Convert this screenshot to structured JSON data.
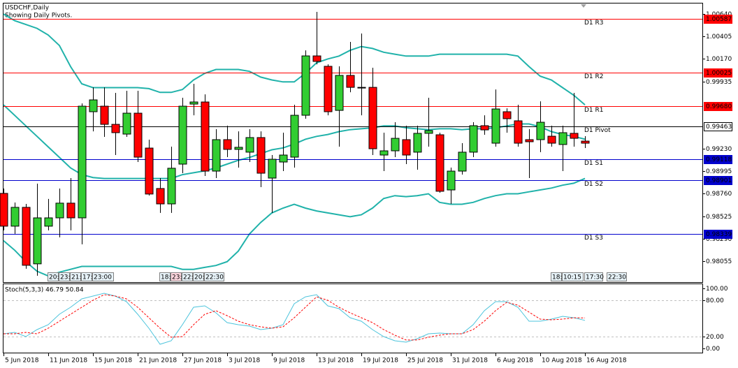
{
  "chart_data": [
    {
      "type": "candlestick",
      "title": "USDCHF,Daily",
      "subtitle": "Showing Daily Pivots.",
      "categories": [
        "5 Jun 2018",
        null,
        null,
        null,
        "11 Jun 2018",
        null,
        null,
        null,
        "15 Jun 2018",
        null,
        null,
        null,
        "21 Jun 2018",
        null,
        null,
        null,
        "27 Jun 2018",
        null,
        null,
        null,
        "3 Jul 2018",
        null,
        null,
        null,
        "9 Jul 2018",
        null,
        null,
        null,
        "13 Jul 2018",
        null,
        null,
        null,
        "19 Jul 2018",
        null,
        null,
        null,
        "25 Jul 2018",
        null,
        null,
        null,
        "31 Jul 2018",
        null,
        null,
        null,
        "6 Aug 2018",
        null,
        null,
        null,
        "10 Aug 2018",
        null,
        null,
        null,
        "16 Aug 2018"
      ],
      "open": [
        0.98764,
        0.98421,
        0.98618,
        0.98027,
        0.98421,
        0.98508,
        0.98662,
        0.98508,
        0.99618,
        0.99676,
        0.99486,
        0.99384,
        0.99603,
        0.99238,
        0.98815,
        0.98654,
        0.9907,
        0.99698,
        0.9972,
        0.98997,
        0.99326,
        0.99224,
        0.99195,
        0.99348,
        0.98924,
        0.99092,
        0.99143,
        0.99581,
        1.00202,
        1.00093,
        0.99632,
        0.99998,
        0.99873,
        0.99873,
        0.99165,
        0.99209,
        0.99326,
        0.99195,
        0.99392,
        0.99377,
        0.988,
        0.98997,
        0.99195,
        0.99472,
        0.99289,
        0.99618,
        0.99523,
        0.99326,
        0.99326,
        0.99362,
        0.99275,
        0.99392,
        0.99311
      ],
      "high": [
        0.98815,
        0.98669,
        0.98654,
        0.98866,
        0.98706,
        0.98815,
        0.98924,
        0.99705,
        0.99873,
        0.99873,
        0.99815,
        0.99837,
        0.99837,
        0.99326,
        0.98924,
        0.99253,
        0.99764,
        0.9991,
        0.998,
        0.99435,
        0.99472,
        0.99413,
        0.99435,
        0.99413,
        0.99165,
        0.99399,
        0.99691,
        1.0026,
        1.00662,
        1.00114,
        1.00093,
        1.00348,
        1.00436,
        1.00078,
        0.99399,
        0.99508,
        0.99472,
        0.99472,
        0.99764,
        0.99399,
        0.99034,
        0.99289,
        0.99508,
        0.99581,
        0.99851,
        0.99654,
        0.99691,
        0.99435,
        0.99727,
        0.99472,
        0.99472,
        0.99815,
        0.99362
      ],
      "low": [
        0.98377,
        0.98341,
        0.97976,
        0.97903,
        0.98377,
        0.98304,
        0.98377,
        0.98231,
        0.99413,
        0.99355,
        0.99165,
        0.99355,
        0.99092,
        0.98742,
        0.9856,
        0.9856,
        0.98975,
        0.99581,
        0.98946,
        0.98924,
        0.99143,
        0.99034,
        0.99092,
        0.98829,
        0.9856,
        0.98997,
        0.99034,
        0.99545,
        1.00114,
        0.99581,
        0.99253,
        0.99822,
        0.99581,
        0.99165,
        0.98997,
        0.99143,
        0.9907,
        0.99012,
        0.99253,
        0.98771,
        0.98654,
        0.98961,
        0.99143,
        0.99377,
        0.99253,
        0.99399,
        0.99253,
        0.98924,
        0.99195,
        0.99253,
        0.98997,
        0.99253,
        0.99238
      ],
      "close": [
        0.98421,
        0.98618,
        0.98012,
        0.98508,
        0.98508,
        0.98662,
        0.98508,
        0.99676,
        0.99742,
        0.99486,
        0.99399,
        0.99603,
        0.99143,
        0.98757,
        0.98654,
        0.99027,
        0.99676,
        0.9972,
        0.98997,
        0.99326,
        0.99224,
        0.99246,
        0.99348,
        0.98975,
        0.99121,
        0.99165,
        0.99581,
        1.00202,
        1.00144,
        0.99618,
        0.99998,
        0.99873,
        0.99873,
        0.99231,
        0.99209,
        0.9934,
        0.99165,
        0.99392,
        0.99421,
        0.98786,
        0.98997,
        0.99195,
        0.99472,
        0.99428,
        0.99647,
        0.99545,
        0.99289,
        0.99304,
        0.99508,
        0.99289,
        0.99399,
        0.9934,
        0.99289
      ],
      "up_color": "#32cd32",
      "down_color": "#ff0000",
      "bands": [
        {
          "color": "#20b2aa",
          "values": [
            1.0064,
            1.0057,
            1.0053,
            1.0049,
            1.0042,
            1.0031,
            1.0009,
            0.9991,
            0.9987,
            0.9987,
            0.9987,
            0.9987,
            0.9987,
            0.9986,
            0.9982,
            0.9982,
            0.9985,
            0.9995,
            1.0002,
            1.0006,
            1.0006,
            1.0006,
            1.0004,
            0.9998,
            0.9995,
            0.9993,
            0.9993,
            1.0002,
            1.0013,
            1.0017,
            1.002,
            1.0026,
            1.003,
            1.0028,
            1.0024,
            1.0022,
            1.002,
            1.002,
            1.002,
            1.0022,
            1.0022,
            1.0022,
            1.0022,
            1.0022,
            1.0022,
            1.0022,
            1.002,
            1.0009,
            0.9999,
            0.9995,
            0.9987,
            0.9979,
            0.9969
          ]
        },
        {
          "color": "#20b2aa",
          "values": [
            0.9969,
            0.9958,
            0.9947,
            0.9936,
            0.9925,
            0.9914,
            0.9903,
            0.9896,
            0.9893,
            0.9892,
            0.9892,
            0.9892,
            0.9892,
            0.9892,
            0.9892,
            0.9892,
            0.9896,
            0.9898,
            0.99,
            0.9903,
            0.9907,
            0.9911,
            0.9914,
            0.9918,
            0.9922,
            0.9924,
            0.9928,
            0.9933,
            0.9936,
            0.9938,
            0.9941,
            0.9943,
            0.9944,
            0.9945,
            0.9947,
            0.9947,
            0.9945,
            0.9944,
            0.9943,
            0.9944,
            0.9944,
            0.9943,
            0.9944,
            0.9944,
            0.9945,
            0.9947,
            0.9949,
            0.9949,
            0.9946,
            0.9941,
            0.9938,
            0.9936,
            0.9933
          ]
        },
        {
          "color": "#20b2aa",
          "values": [
            0.9827,
            0.9817,
            0.9805,
            0.9795,
            0.979,
            0.9794,
            0.9797,
            0.98,
            0.98,
            0.98,
            0.98,
            0.98,
            0.98,
            0.98,
            0.98,
            0.98,
            0.9797,
            0.9797,
            0.9799,
            0.9801,
            0.9805,
            0.9816,
            0.9834,
            0.9846,
            0.9856,
            0.9861,
            0.9865,
            0.9861,
            0.9858,
            0.9856,
            0.9854,
            0.9852,
            0.9854,
            0.9861,
            0.9871,
            0.9874,
            0.9873,
            0.9874,
            0.9876,
            0.9867,
            0.9865,
            0.9865,
            0.9867,
            0.9871,
            0.9874,
            0.9876,
            0.9876,
            0.9878,
            0.988,
            0.9882,
            0.9885,
            0.9887,
            0.9892
          ]
        }
      ],
      "pivots": [
        {
          "name": "D1 R3",
          "value": 1.00587,
          "label": "1.00587",
          "color": "#ff0000"
        },
        {
          "name": "D1 R2",
          "value": 1.00025,
          "label": "1.00025",
          "color": "#ff0000"
        },
        {
          "name": "D1 R1",
          "value": 0.9968,
          "label": "0.99680",
          "color": "#ff0000"
        },
        {
          "name": "D1 Pivot",
          "value": 0.99463,
          "label": "0.99463",
          "color": "#000000"
        },
        {
          "name": "D1 S1",
          "value": 0.99118,
          "label": "0.99118",
          "color": "#0000cd"
        },
        {
          "name": "D1 S2",
          "value": 0.98901,
          "label": "0.98901",
          "color": "#0000cd"
        },
        {
          "name": "D1 S3",
          "value": 0.98339,
          "label": "0.98339",
          "color": "#0000cd"
        }
      ],
      "time_labels": [
        "20:",
        "23:",
        "21:",
        "17:",
        "23:00",
        "18:",
        "23:",
        "22:",
        "20:",
        "22:30",
        "18:",
        "10:15",
        "17:30",
        "22:30"
      ],
      "ylim": [
        0.97836,
        1.0075
      ],
      "yticks": [
        {
          "value": 1.0064,
          "label": "1.00640"
        },
        1.00405,
        {
          "value": 1.0017,
          "label": "1.00170"
        },
        0.99935,
        {
          "value": 0.9923,
          "label": "0.99230"
        },
        0.98995,
        {
          "value": 0.9876,
          "label": "0.98760"
        },
        0.98525,
        {
          "value": 0.9829,
          "label": "0.98290"
        },
        0.98055
      ]
    },
    {
      "type": "line",
      "title": "Stoch(5,3,3) 46.79 50.84",
      "series": [
        {
          "color": "#4cc4dc",
          "values": [
            24.4,
            26.7,
            19.8,
            31.4,
            39.5,
            57.0,
            68.6,
            82.6,
            87.2,
            91.9,
            87.2,
            77.9,
            57.0,
            33.7,
            7.0,
            12.8,
            39.5,
            68.6,
            70.9,
            59.3,
            43.0,
            39.5,
            37.2,
            31.4,
            33.7,
            39.5,
            74.4,
            86.0,
            89.5,
            70.9,
            66.3,
            51.2,
            45.3,
            31.4,
            19.8,
            12.8,
            10.5,
            16.3,
            24.4,
            25.6,
            24.4,
            24.4,
            39.5,
            62.8,
            77.9,
            77.9,
            68.6,
            45.3,
            45.3,
            48.8,
            53.5,
            51.2,
            46.8
          ]
        },
        {
          "color": "#ff0000",
          "dashed": true,
          "values": [
            24.4,
            24.4,
            26.7,
            24.4,
            33.7,
            45.3,
            57.0,
            68.6,
            80.2,
            89.5,
            87.2,
            82.6,
            68.6,
            51.2,
            33.7,
            18.6,
            19.8,
            39.5,
            57.0,
            62.8,
            54.7,
            45.3,
            39.5,
            36.0,
            33.7,
            36.0,
            51.2,
            68.6,
            86.0,
            80.2,
            68.6,
            59.3,
            51.2,
            43.0,
            31.4,
            22.1,
            14.0,
            14.0,
            18.6,
            22.1,
            24.4,
            24.4,
            31.4,
            45.3,
            62.8,
            76.7,
            72.1,
            60.5,
            48.8,
            47.7,
            48.8,
            51.2,
            50.8
          ]
        }
      ],
      "levels": [
        80,
        20
      ],
      "ylim": [
        -7,
        107
      ],
      "yticks": [
        {
          "value": 100,
          "label": "100.00"
        },
        {
          "value": 80,
          "label": "80.00"
        },
        {
          "value": 20,
          "label": "20.00"
        },
        {
          "value": 0,
          "label": "0.00"
        }
      ]
    }
  ]
}
